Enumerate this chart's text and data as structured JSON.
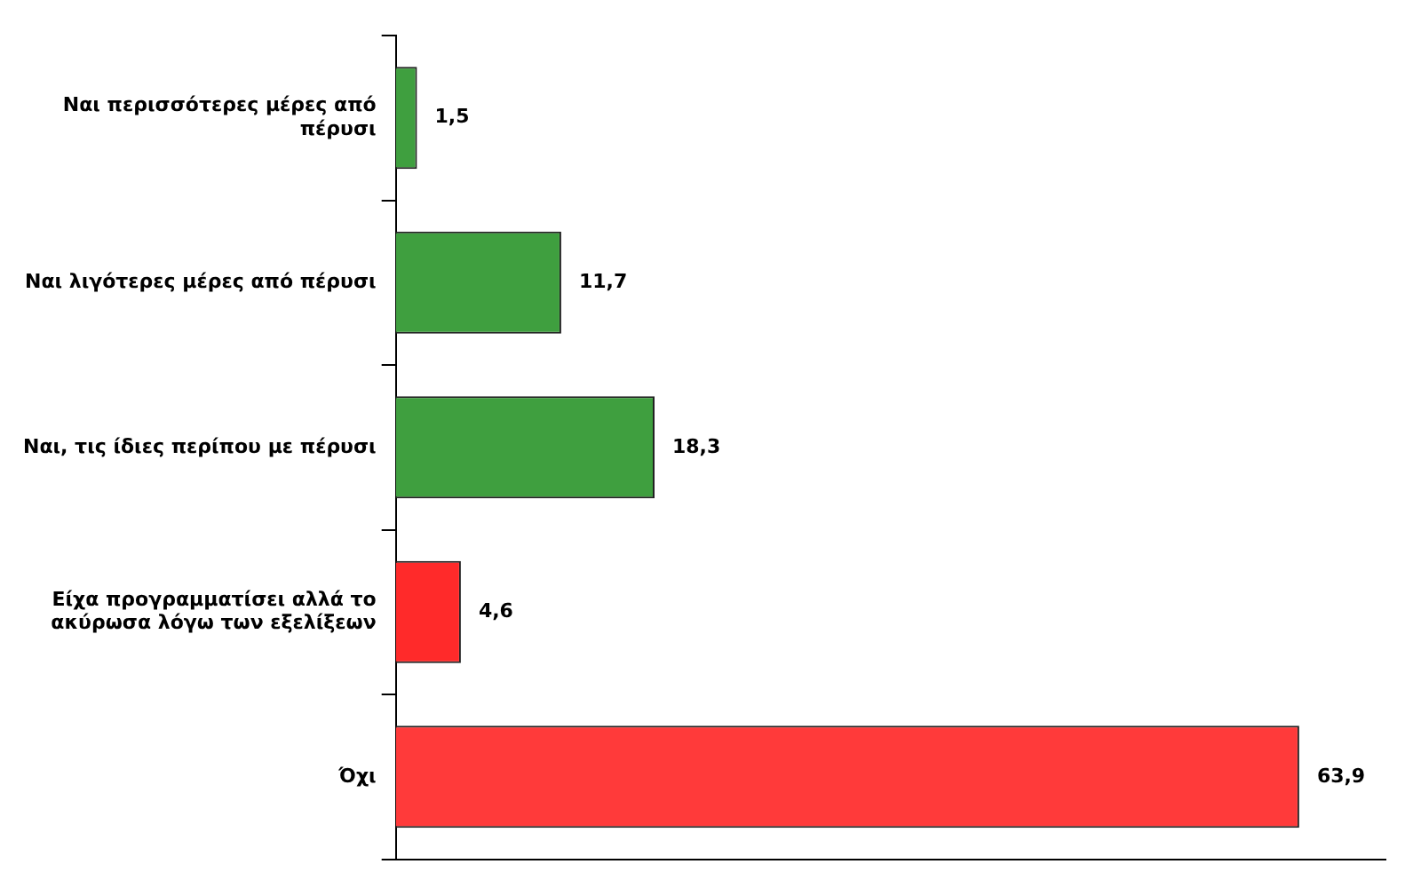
{
  "chart_data": {
    "type": "bar",
    "orientation": "horizontal",
    "categories": [
      "Ναι περισσότερες μέρες από πέρυσι",
      "Ναι λιγότερες μέρες από πέρυσι",
      "Ναι, τις ίδιες περίπου με πέρυσι",
      "Είχα προγραμματίσει αλλά το ακύρωσα λόγω των εξελίξεων",
      "Όχι"
    ],
    "values": [
      1.5,
      11.7,
      18.3,
      4.6,
      63.9
    ],
    "colors": [
      "#3f9f3f",
      "#3f9f3f",
      "#3f9f3f",
      "#ff2a2a",
      "#ff3a3a"
    ],
    "value_labels": [
      "1,5",
      "11,7",
      "18,3",
      "4,6",
      "63,9"
    ],
    "tick_labels": "y",
    "grid": false,
    "legend": false
  }
}
